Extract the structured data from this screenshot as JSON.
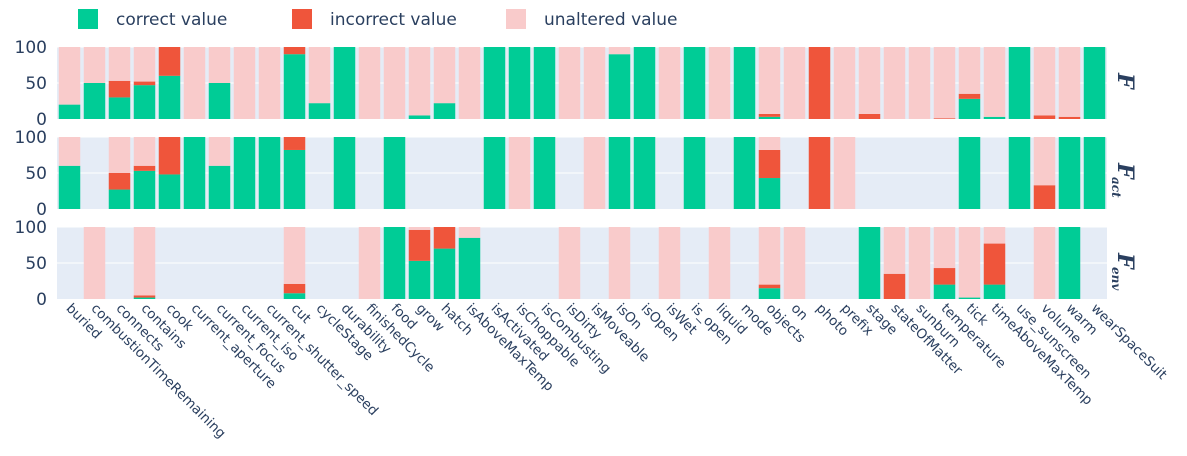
{
  "chart_data": {
    "type": "bar",
    "stacked": true,
    "legend": {
      "position": "top-left",
      "entries": [
        {
          "name": "correct value",
          "color": "#00cc96"
        },
        {
          "name": "incorrect value",
          "color": "#ef553b"
        },
        {
          "name": "unaltered value",
          "color": "#f9cbcb"
        }
      ]
    },
    "categories": [
      "buried",
      "combustionTimeRemaining",
      "connects",
      "contains",
      "cook",
      "current_aperture",
      "current_focus",
      "current_iso",
      "current_shutter_speed",
      "cut",
      "cycleStage",
      "durability",
      "finishedCycle",
      "food",
      "grow",
      "hatch",
      "isAboveMaxTemp",
      "isActivated",
      "isChoppable",
      "isCombusting",
      "isDirty",
      "isMoveable",
      "isOn",
      "isOpen",
      "isWet",
      "is_open",
      "liquid",
      "mode",
      "objects",
      "on",
      "photo",
      "prefix",
      "stage",
      "stateOfMatter",
      "sunburn",
      "temperature",
      "tick",
      "timeAboveMaxTemp",
      "use_sunscreen",
      "volume",
      "warm",
      "wearSpaceSuit"
    ],
    "yticks": [
      0,
      50,
      100
    ],
    "ylim": [
      0,
      100
    ],
    "panels": [
      {
        "label": "F",
        "subscript": "",
        "correct": [
          20,
          50,
          30,
          47,
          60,
          0,
          50,
          0,
          0,
          90,
          22,
          100,
          0,
          0,
          5,
          22,
          0,
          100,
          100,
          100,
          0,
          0,
          90,
          100,
          0,
          100,
          0,
          100,
          3,
          0,
          0,
          0,
          0,
          0,
          0,
          0,
          28,
          3,
          100,
          0,
          0,
          100
        ],
        "incorrect": [
          0,
          0,
          23,
          5,
          40,
          0,
          0,
          0,
          0,
          10,
          0,
          0,
          0,
          0,
          0,
          0,
          0,
          0,
          0,
          0,
          0,
          0,
          0,
          0,
          0,
          0,
          0,
          0,
          4,
          0,
          100,
          0,
          7,
          0,
          0,
          1,
          7,
          0,
          0,
          5,
          3,
          0
        ],
        "unaltered": [
          80,
          50,
          47,
          48,
          0,
          100,
          50,
          100,
          100,
          0,
          78,
          0,
          100,
          100,
          95,
          78,
          100,
          0,
          0,
          0,
          100,
          100,
          10,
          0,
          100,
          0,
          100,
          0,
          93,
          100,
          0,
          100,
          93,
          100,
          100,
          99,
          65,
          97,
          0,
          95,
          97,
          0
        ]
      },
      {
        "label": "F",
        "subscript": "act",
        "correct": [
          60,
          null,
          27,
          53,
          48,
          100,
          60,
          100,
          100,
          82,
          null,
          100,
          null,
          100,
          null,
          null,
          null,
          100,
          null,
          100,
          null,
          null,
          100,
          100,
          null,
          100,
          null,
          100,
          43,
          null,
          null,
          null,
          null,
          null,
          null,
          null,
          100,
          null,
          100,
          null,
          100,
          100
        ],
        "incorrect": [
          0,
          null,
          23,
          7,
          52,
          0,
          0,
          0,
          0,
          18,
          null,
          0,
          null,
          0,
          null,
          null,
          null,
          0,
          null,
          0,
          null,
          null,
          0,
          0,
          null,
          0,
          null,
          0,
          39,
          null,
          100,
          null,
          null,
          null,
          null,
          null,
          0,
          null,
          0,
          33,
          0,
          0
        ],
        "unaltered": [
          40,
          null,
          50,
          40,
          0,
          0,
          40,
          0,
          0,
          0,
          null,
          0,
          null,
          0,
          null,
          null,
          null,
          0,
          100,
          0,
          null,
          100,
          0,
          0,
          null,
          0,
          null,
          0,
          18,
          null,
          0,
          100,
          null,
          null,
          null,
          null,
          0,
          null,
          0,
          67,
          0,
          0
        ]
      },
      {
        "label": "F",
        "subscript": "env",
        "correct": [
          null,
          0,
          null,
          2,
          null,
          null,
          null,
          null,
          null,
          8,
          null,
          null,
          0,
          100,
          53,
          70,
          85,
          null,
          null,
          null,
          0,
          null,
          0,
          null,
          0,
          null,
          0,
          null,
          15,
          0,
          null,
          null,
          100,
          0,
          0,
          20,
          2,
          20,
          null,
          0,
          100,
          null
        ],
        "incorrect": [
          null,
          0,
          null,
          3,
          null,
          null,
          null,
          null,
          null,
          13,
          null,
          null,
          0,
          0,
          43,
          30,
          0,
          null,
          null,
          null,
          0,
          null,
          0,
          null,
          0,
          null,
          0,
          null,
          5,
          0,
          null,
          null,
          0,
          35,
          0,
          23,
          0,
          57,
          null,
          0,
          0,
          null
        ],
        "unaltered": [
          null,
          100,
          null,
          95,
          null,
          null,
          null,
          null,
          null,
          79,
          null,
          null,
          100,
          0,
          4,
          0,
          15,
          null,
          null,
          null,
          100,
          null,
          100,
          null,
          100,
          null,
          100,
          null,
          80,
          100,
          null,
          null,
          0,
          65,
          100,
          57,
          98,
          23,
          null,
          100,
          0,
          null
        ]
      }
    ]
  }
}
